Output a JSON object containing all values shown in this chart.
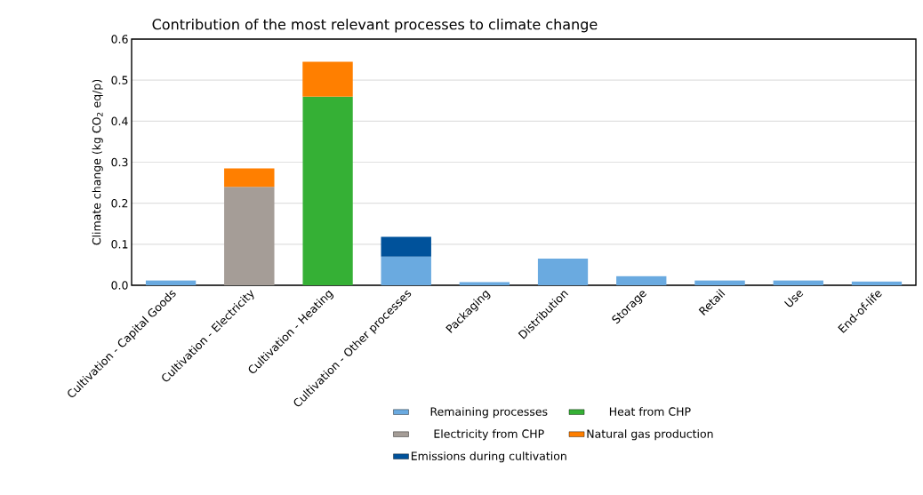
{
  "chart_data": {
    "type": "bar",
    "stacked": true,
    "title": "Contribution of the most relevant processes to climate change",
    "ylabel": "Climate change (kg CO$_{2}$ eq/p)",
    "categories": [
      "Cultivation - Capital Goods",
      "Cultivation - Electricity",
      "Cultivation - Heating",
      "Cultivation - Other processes",
      "Packaging",
      "Distribution",
      "Storage",
      "Retail",
      "Use",
      "End-of-life"
    ],
    "series": [
      {
        "name": "Remaining processes",
        "color": "#6aaae0",
        "values": [
          0.012,
          null,
          null,
          0.07,
          0.008,
          0.065,
          0.022,
          0.012,
          0.012,
          0.009
        ]
      },
      {
        "name": "Heat from CHP",
        "color": "#35b035",
        "values": [
          null,
          null,
          0.46,
          null,
          null,
          null,
          null,
          null,
          null,
          null
        ]
      },
      {
        "name": "Electricity from CHP",
        "color": "#a59d97",
        "values": [
          null,
          0.24,
          null,
          null,
          null,
          null,
          null,
          null,
          null,
          null
        ]
      },
      {
        "name": "Natural gas production",
        "color": "#ff7f00",
        "values": [
          null,
          0.045,
          0.085,
          null,
          null,
          null,
          null,
          null,
          null,
          null
        ]
      },
      {
        "name": "Emissions during cultivation",
        "color": "#00529b",
        "values": [
          null,
          null,
          null,
          0.048,
          null,
          null,
          null,
          null,
          null,
          null
        ]
      }
    ],
    "ylim": [
      0,
      0.6
    ],
    "yticks": [
      {
        "value": 0,
        "label": "0.0"
      },
      {
        "value": 0.1,
        "label": "0.1"
      },
      {
        "value": 0.2,
        "label": "0.2"
      },
      {
        "value": 0.3,
        "label": "0.3"
      },
      {
        "value": 0.4,
        "label": "0.4"
      },
      {
        "value": 0.5,
        "label": "0.5"
      },
      {
        "value": 0.6,
        "label": "0.6"
      }
    ],
    "grid": "y",
    "legend": "bottom"
  }
}
